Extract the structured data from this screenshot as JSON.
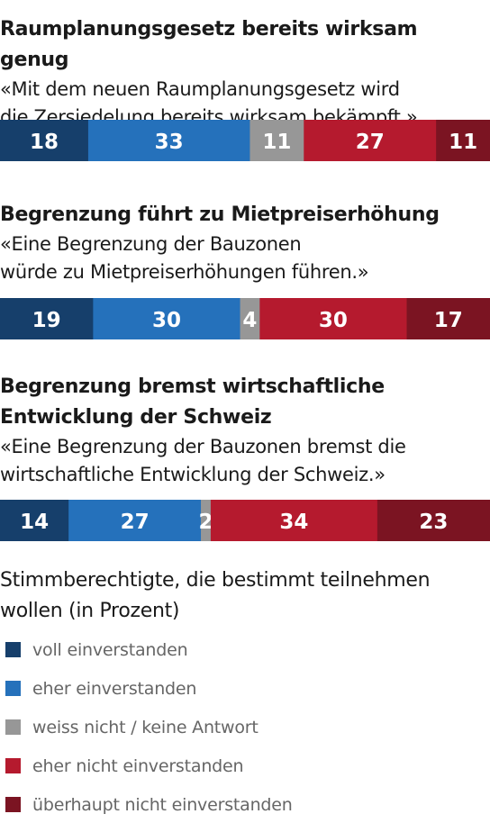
{
  "chart_data": {
    "type": "bar",
    "orientation": "horizontal-stacked",
    "title": "",
    "note": "Stimmberechtigte, die bestimmt teilnehmen wollen (in Prozent)",
    "series_names": [
      "voll einverstanden",
      "eher einverstanden",
      "weiss nicht / keine Antwort",
      "eher nicht einverstanden",
      "überhaupt nicht einverstanden"
    ],
    "colors": [
      "#163f6b",
      "#2571bb",
      "#979797",
      "#b51a2e",
      "#7b1422"
    ],
    "legend_position": "bottom",
    "grid": false,
    "charts": [
      {
        "title": "Raumplanungsgesetz bereits wirksam genug",
        "quote_lines": [
          "«Mit dem neuen Raumplanungsgesetz wird",
          "die Zersiedelung bereits wirksam bekämpft.»"
        ],
        "values": [
          18,
          33,
          11,
          27,
          11
        ]
      },
      {
        "title": "Begrenzung führt zu Mietpreiserhöhung",
        "quote_lines": [
          "«Eine Begrenzung der Bauzonen",
          "würde zu Mietpreiserhöhungen führen.»"
        ],
        "values": [
          19,
          30,
          4,
          30,
          17
        ]
      },
      {
        "title_lines": [
          "Begrenzung bremst wirtschaftliche",
          "Entwicklung der Schweiz"
        ],
        "quote_lines": [
          "«Eine Begrenzung der Bauzonen bremst die",
          "wirtschaftliche Entwicklung der Schweiz.»"
        ],
        "values": [
          14,
          27,
          2,
          34,
          23
        ]
      }
    ]
  }
}
